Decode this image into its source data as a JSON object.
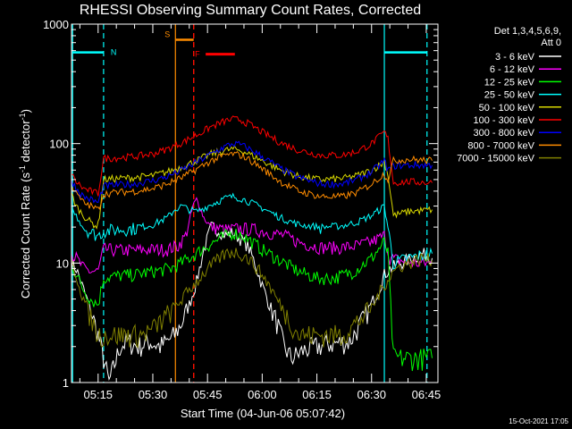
{
  "chart_data": {
    "type": "line",
    "title": "RHESSI Observing Summary Count Rates, Corrected",
    "xlabel": "Start Time (04-Jun-06 05:07:42)",
    "ylabel": "Corrected Count Rate (s⁻¹ detector⁻¹)",
    "ylabel_parts": [
      "Corrected Count Rate (s",
      "-1",
      " detector",
      "-1",
      ")"
    ],
    "y_scale": "log",
    "ylim": [
      1,
      1000
    ],
    "y_ticks": [
      {
        "v": 1,
        "label": "1"
      },
      {
        "v": 10,
        "label": "10"
      },
      {
        "v": 100,
        "label": "100"
      },
      {
        "v": 1000,
        "label": "1000"
      }
    ],
    "xlim_minutes": [
      307.7,
      408.2
    ],
    "x_ticks": [
      {
        "v": 315,
        "label": "05:15"
      },
      {
        "v": 330,
        "label": "05:30"
      },
      {
        "v": 345,
        "label": "05:45"
      },
      {
        "v": 360,
        "label": "06:00"
      },
      {
        "v": 375,
        "label": "06:15"
      },
      {
        "v": 390,
        "label": "06:30"
      },
      {
        "v": 405,
        "label": "06:45"
      }
    ],
    "legend_header": [
      "Det 1,3,4,5,6,9,",
      "Att 0"
    ],
    "series": [
      {
        "name": "3 - 6 keV",
        "color": "#ffffff",
        "x": [
          307.7,
          309,
          311,
          313,
          315,
          318,
          321,
          323,
          326,
          329,
          332,
          334,
          336,
          338,
          340,
          342,
          344,
          346,
          348,
          350,
          352,
          354,
          356,
          358,
          360,
          362,
          364,
          366,
          368,
          372,
          378,
          384,
          388,
          392,
          393.5,
          395,
          398,
          401,
          404,
          406.6
        ],
        "y": [
          10,
          9,
          6,
          4,
          2.5,
          1,
          2.0,
          2.2,
          2.0,
          2.2,
          2.0,
          2.2,
          2.5,
          3.2,
          4.5,
          7,
          13,
          20,
          19,
          17,
          18,
          16,
          14,
          10,
          6.5,
          4.5,
          3.2,
          2.0,
          1.6,
          1.9,
          2.1,
          2.2,
          3.5,
          6,
          8,
          9,
          10,
          11,
          12,
          11
        ]
      },
      {
        "name": "6 - 12 keV",
        "color": "#ff00ff",
        "x": [
          307.7,
          309,
          311,
          313,
          315,
          316.5,
          320,
          325,
          330,
          334,
          337,
          339,
          340,
          341,
          342,
          343,
          344,
          346,
          350,
          354,
          358,
          362,
          366,
          370,
          376,
          382,
          386,
          390,
          393.5,
          395,
          398,
          402,
          404,
          406.6
        ],
        "y": [
          12,
          11,
          9,
          8.5,
          8.5,
          13,
          12.8,
          12.8,
          13,
          13,
          14,
          17,
          22,
          30,
          34,
          29,
          24,
          20,
          19,
          19.5,
          19,
          18,
          17,
          15,
          13.5,
          13.5,
          14,
          15,
          17,
          11,
          10.5,
          10,
          10,
          10
        ]
      },
      {
        "name": "12 - 25 keV",
        "color": "#00ff00",
        "x": [
          307.7,
          309,
          311,
          313,
          315,
          316.5,
          320,
          325,
          330,
          335,
          340,
          345,
          350,
          352,
          354,
          356,
          360,
          365,
          370,
          375,
          380,
          385,
          390,
          393.5,
          394.5,
          396,
          400,
          406.6
        ],
        "y": [
          10,
          8,
          6,
          5,
          4.5,
          7.5,
          7.8,
          8,
          8.5,
          9,
          11,
          14,
          17,
          18,
          17.5,
          16,
          13,
          10.5,
          8.5,
          7.5,
          7.5,
          8.5,
          11,
          15,
          12,
          1.6,
          1.6,
          1.6
        ]
      },
      {
        "name": "25 - 50 keV",
        "color": "#00ffff",
        "x": [
          307.7,
          309,
          311,
          313,
          315,
          316.5,
          320,
          325,
          330,
          334,
          336,
          338,
          340,
          342,
          346,
          350,
          352,
          354,
          356,
          360,
          365,
          370,
          376,
          382,
          386,
          390,
          393.5,
          394.5,
          396,
          400,
          406.6
        ],
        "y": [
          28,
          25,
          20,
          18,
          17,
          18.5,
          19,
          19.5,
          21,
          24,
          28,
          30,
          28,
          27,
          31,
          35,
          36,
          35,
          33,
          29,
          24,
          21,
          20,
          20.5,
          22,
          25,
          30,
          20,
          10,
          11,
          12
        ]
      },
      {
        "name": "50 - 100 keV",
        "color": "#d8d800",
        "x": [
          307.7,
          309,
          311,
          313,
          315,
          316.5,
          320,
          325,
          330,
          334,
          338,
          342,
          346,
          350,
          352,
          354,
          356,
          360,
          365,
          370,
          376,
          382,
          386,
          390,
          393.5,
          394.5,
          396,
          400,
          406.6
        ],
        "y": [
          38,
          30,
          25,
          22,
          20,
          50,
          51,
          52,
          54,
          58,
          64,
          72,
          82,
          88,
          90,
          88,
          83,
          72,
          60,
          53,
          50,
          51,
          54,
          60,
          70,
          55,
          25,
          27,
          28
        ]
      },
      {
        "name": "100 - 300 keV",
        "color": "#ff0000",
        "x": [
          307.7,
          309,
          311,
          313,
          315,
          316.5,
          320,
          325,
          330,
          334,
          338,
          342,
          346,
          350,
          352,
          354,
          356,
          360,
          365,
          370,
          376,
          382,
          386,
          390,
          393.5,
          394.5,
          396,
          400,
          406.6
        ],
        "y": [
          55,
          48,
          42,
          40,
          38,
          75,
          76,
          78,
          82,
          90,
          102,
          118,
          138,
          155,
          160,
          158,
          148,
          125,
          102,
          88,
          80,
          80,
          86,
          100,
          125,
          110,
          47,
          48,
          47
        ]
      },
      {
        "name": "300 - 800 keV",
        "color": "#0000ff",
        "x": [
          307.7,
          309,
          311,
          313,
          315,
          316.5,
          320,
          325,
          330,
          334,
          338,
          342,
          346,
          350,
          352,
          354,
          356,
          360,
          365,
          370,
          376,
          382,
          386,
          390,
          393.5,
          394.5,
          396,
          400,
          406.6
        ],
        "y": [
          50,
          42,
          36,
          34,
          32,
          44,
          45,
          46,
          49,
          53,
          60,
          70,
          82,
          95,
          100,
          98,
          92,
          78,
          62,
          52,
          46,
          46,
          50,
          58,
          72,
          60,
          65,
          66,
          66
        ]
      },
      {
        "name": "800 - 7000 keV",
        "color": "#ff8c00",
        "x": [
          307.7,
          309,
          311,
          313,
          315,
          316.5,
          320,
          325,
          330,
          334,
          338,
          342,
          346,
          350,
          352,
          354,
          356,
          360,
          365,
          370,
          376,
          382,
          386,
          390,
          393.5,
          394.5,
          396,
          400,
          406.6
        ],
        "y": [
          45,
          38,
          32,
          30,
          28,
          38,
          39,
          40,
          42,
          46,
          52,
          61,
          72,
          80,
          82,
          80,
          75,
          62,
          48,
          40,
          36,
          36,
          39,
          46,
          56,
          50,
          72,
          74,
          72
        ]
      },
      {
        "name": "7000 - 15000 keV",
        "color": "#808000",
        "x": [
          307.7,
          309,
          311,
          313,
          315,
          318,
          321,
          324,
          327,
          330,
          332,
          334,
          336,
          338,
          340,
          342,
          344,
          346,
          348,
          350,
          352,
          354,
          356,
          358,
          360,
          362,
          364,
          366,
          370,
          376,
          382,
          386,
          390,
          392,
          394,
          396,
          398,
          400,
          402,
          404,
          406.6
        ],
        "y": [
          10,
          8,
          5,
          3.5,
          2.5,
          2.5,
          2.5,
          2.5,
          2.5,
          2.8,
          3.2,
          3.7,
          4.3,
          5,
          6,
          7,
          8.2,
          9.5,
          10.8,
          12,
          12.5,
          12,
          11,
          9.5,
          8,
          6.5,
          5,
          4,
          2.5,
          2.5,
          2.5,
          3.2,
          4.2,
          5.5,
          7,
          8.5,
          9.5,
          10,
          10.5,
          11,
          10.5
        ]
      }
    ],
    "annotations": [
      {
        "label": "N",
        "color": "#00ffff",
        "x_solid": 308.0,
        "x_dashed": 316.5,
        "bar_y": 580
      },
      {
        "label": "S",
        "color": "#ff8c00",
        "x_solid": 336.2,
        "x_dashed": 341.2,
        "bar_y": 740
      },
      {
        "label": "F",
        "color": "#ff0000",
        "x_dashed": 341.2,
        "bar_from": 344.5,
        "bar_to": 352.5,
        "bar_y": 560
      },
      {
        "label": "",
        "color": "#00ffff",
        "x_solid": 393.5,
        "x_dashed": 405.2,
        "bar_y": 580
      }
    ]
  },
  "footer": {
    "timestamp": "15-Oct-2021 17:05"
  }
}
